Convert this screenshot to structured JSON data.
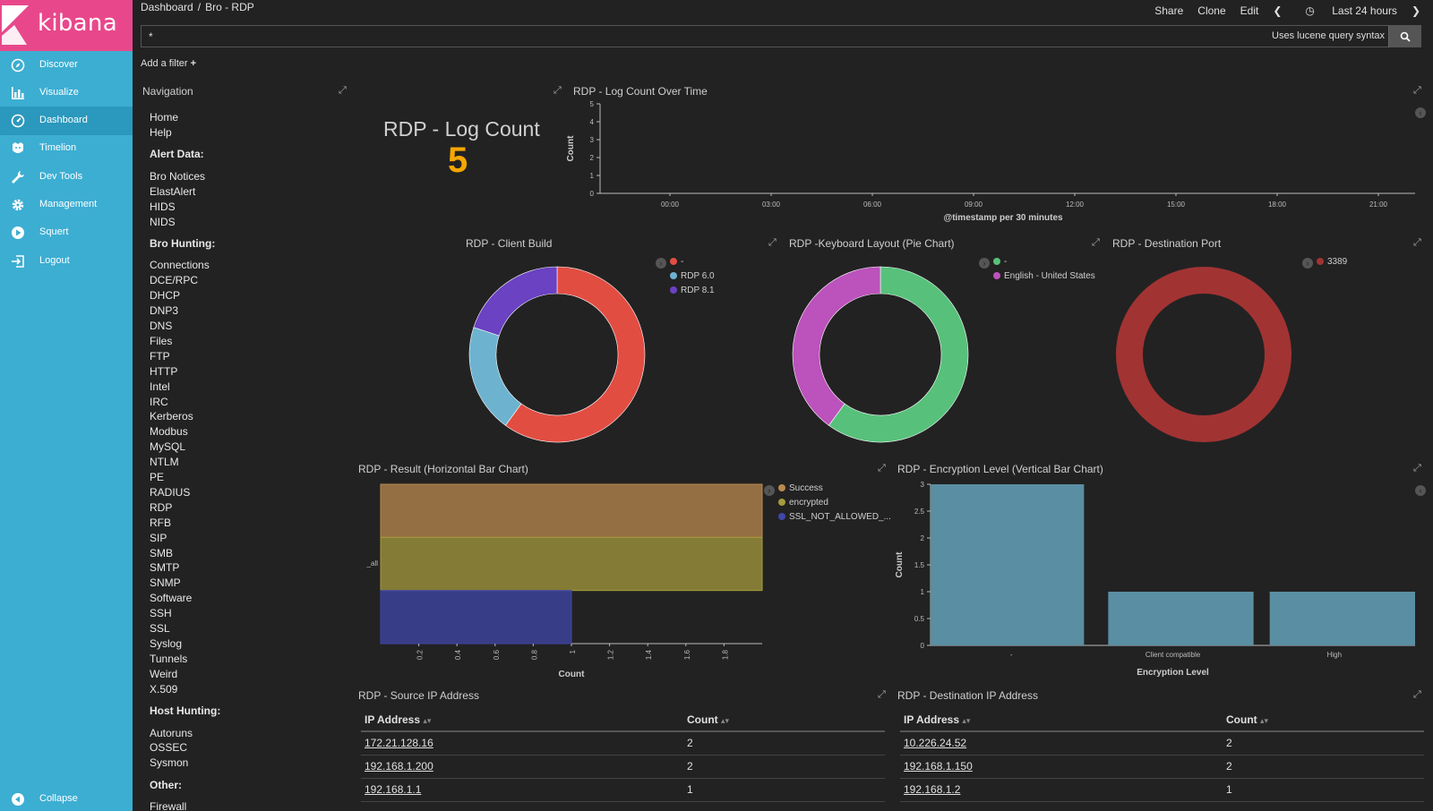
{
  "app": {
    "logo_text": "kibana"
  },
  "sidebar": {
    "items": [
      {
        "label": "Discover",
        "icon": "compass-icon"
      },
      {
        "label": "Visualize",
        "icon": "bar-chart-icon"
      },
      {
        "label": "Dashboard",
        "icon": "dashboard-icon",
        "active": true
      },
      {
        "label": "Timelion",
        "icon": "timelion-icon"
      },
      {
        "label": "Dev Tools",
        "icon": "wrench-icon"
      },
      {
        "label": "Management",
        "icon": "gear-icon"
      },
      {
        "label": "Squert",
        "icon": "play-icon"
      },
      {
        "label": "Logout",
        "icon": "logout-icon"
      }
    ],
    "collapse_label": "Collapse"
  },
  "breadcrumb": {
    "root": "Dashboard",
    "sep": "/",
    "current": "Bro - RDP"
  },
  "top_actions": {
    "share": "Share",
    "clone": "Clone",
    "edit": "Edit",
    "time": "Last 24 hours"
  },
  "search": {
    "value": "*",
    "hint": "Uses lucene query syntax"
  },
  "filter": {
    "add_label": "Add a filter"
  },
  "navigation": {
    "title": "Navigation",
    "top_links": [
      "Home",
      "Help"
    ],
    "alert_heading": "Alert Data:",
    "alert_links": [
      "Bro Notices",
      "ElastAlert",
      "HIDS",
      "NIDS"
    ],
    "bro_heading": "Bro Hunting:",
    "bro_links": [
      "Connections",
      "DCE/RPC",
      "DHCP",
      "DNP3",
      "DNS",
      "Files",
      "FTP",
      "HTTP",
      "Intel",
      "IRC",
      "Kerberos",
      "Modbus",
      "MySQL",
      "NTLM",
      "PE",
      "RADIUS",
      "RDP",
      "RFB",
      "SIP",
      "SMB",
      "SMTP",
      "SNMP",
      "Software",
      "SSH",
      "SSL",
      "Syslog",
      "Tunnels",
      "Weird",
      "X.509"
    ],
    "host_heading": "Host Hunting:",
    "host_links": [
      "Autoruns",
      "OSSEC",
      "Sysmon"
    ],
    "other_heading": "Other:",
    "other_links": [
      "Firewall"
    ]
  },
  "metric": {
    "title": "RDP - Log Count",
    "value": "5"
  },
  "colors": {
    "sidebar": "#3caed2",
    "logo": "#e8488b",
    "metric": "#f5a700"
  },
  "chart_data": [
    {
      "type": "line",
      "title": "RDP - Log Count Over Time",
      "xlabel": "@timestamp per 30 minutes",
      "ylabel": "Count",
      "x_ticks": [
        "00:00",
        "03:00",
        "06:00",
        "09:00",
        "12:00",
        "15:00",
        "18:00",
        "21:00"
      ],
      "y_ticks": [
        "0",
        "1",
        "2",
        "3",
        "4",
        "5"
      ],
      "ylim": [
        0,
        5
      ]
    },
    {
      "type": "pie",
      "title": "RDP - Client Build",
      "labels": [
        "-",
        "RDP 6.0",
        "RDP 8.1"
      ],
      "values": [
        3,
        1,
        1
      ],
      "colors": [
        "#e24d42",
        "#6db3d0",
        "#6a42c2"
      ]
    },
    {
      "type": "pie",
      "title": "RDP -Keyboard Layout (Pie Chart)",
      "labels": [
        "-",
        "English - United States"
      ],
      "values": [
        3,
        2
      ],
      "colors": [
        "#57c17b",
        "#bc52bc"
      ]
    },
    {
      "type": "pie",
      "title": "RDP - Destination Port",
      "labels": [
        "3389"
      ],
      "values": [
        5
      ],
      "colors": [
        "#a23333"
      ]
    },
    {
      "type": "bar",
      "orientation": "horizontal",
      "title": "RDP - Result (Horizontal Bar Chart)",
      "category": "_all",
      "xlabel": "Count",
      "x_ticks": [
        "0.2",
        "0.4",
        "0.6",
        "0.8",
        "1",
        "1.2",
        "1.4",
        "1.6",
        "1.8"
      ],
      "series": [
        {
          "name": "Success",
          "value": 2,
          "color": "#ba8a4f"
        },
        {
          "name": "encrypted",
          "value": 2,
          "color": "#a59b3d"
        },
        {
          "name": "SSL_NOT_ALLOWED_...",
          "value": 1,
          "color": "#3f47a8"
        }
      ]
    },
    {
      "type": "bar",
      "title": "RDP - Encryption Level (Vertical Bar Chart)",
      "xlabel": "Encryption Level",
      "ylabel": "Count",
      "categories": [
        "-",
        "Client compatible",
        "High"
      ],
      "values": [
        3,
        1,
        1
      ],
      "y_ticks": [
        "0",
        "0.5",
        "1",
        "1.5",
        "2",
        "2.5",
        "3"
      ],
      "ylim": [
        0,
        3
      ],
      "color": "#5a8fa3"
    }
  ],
  "source_table": {
    "title": "RDP - Source IP Address",
    "col_ip": "IP Address",
    "col_count": "Count",
    "rows": [
      [
        "172.21.128.16",
        "2"
      ],
      [
        "192.168.1.200",
        "2"
      ],
      [
        "192.168.1.1",
        "1"
      ]
    ]
  },
  "dest_table": {
    "title": "RDP - Destination IP Address",
    "col_ip": "IP Address",
    "col_count": "Count",
    "rows": [
      [
        "10.226.24.52",
        "2"
      ],
      [
        "192.168.1.150",
        "2"
      ],
      [
        "192.168.1.2",
        "1"
      ]
    ]
  }
}
